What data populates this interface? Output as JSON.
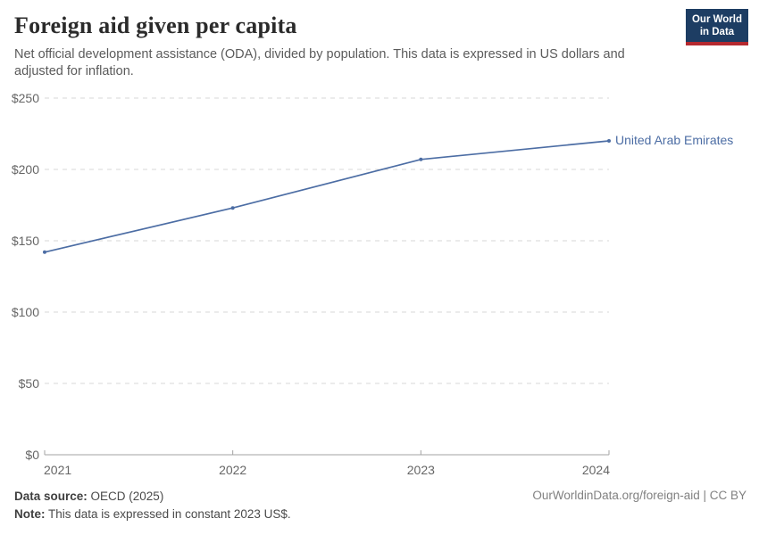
{
  "header": {
    "title": "Foreign aid given per capita",
    "subtitle": "Net official development assistance (ODA), divided by population. This data is expressed in US dollars and\nadjusted for inflation.",
    "logo": {
      "line1": "Our World",
      "line2": "in Data",
      "bg_color": "#1d3d63",
      "accent_color": "#b5292f"
    }
  },
  "chart_data": {
    "type": "line",
    "x": [
      2021,
      2022,
      2023,
      2024
    ],
    "series": [
      {
        "name": "United Arab Emirates",
        "values": [
          142,
          173,
          207,
          220
        ]
      }
    ],
    "title": "Foreign aid given per capita",
    "xlabel": "",
    "ylabel": "",
    "ylim": [
      0,
      250
    ],
    "yticks": [
      0,
      50,
      100,
      150,
      200,
      250
    ],
    "ytick_prefix": "$",
    "grid": "horizontal-dashed",
    "legend_position": "end-of-line-label",
    "line_color": "#4c6da4",
    "label_color": "#4c6da4"
  },
  "footer": {
    "source_label": "Data source:",
    "source_value": " OECD (2025)",
    "note_label": "Note:",
    "note_value": " This data is expressed in constant 2023 US$.",
    "right_text": "OurWorldinData.org/foreign-aid | CC BY"
  }
}
